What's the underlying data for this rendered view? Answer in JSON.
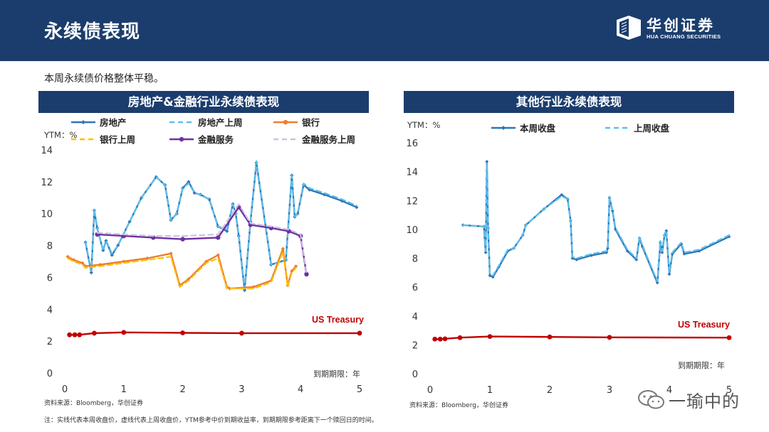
{
  "header": {
    "title": "永续债表现",
    "logo_cn": "华创证券",
    "logo_en": "HUA CHUANG SECURITIES"
  },
  "summary": "本周永续债价格整体平稳。",
  "source_left": "资料来源：Bloomberg，华创证券",
  "source_right": "资料来源：Bloomberg，华创证券",
  "note": "注：实线代表本周收盘价，虚线代表上周收盘价，YTM参考中价到期收益率，到期期限参考距离下一个赎回日的时间。",
  "watermark": "一瑜中的",
  "colors": {
    "header_bg": "#1b3d6d",
    "property": "#2e75b6",
    "property_prev": "#5bc0eb",
    "bank": "#ed7d31",
    "bank_prev": "#ffc000",
    "finserv": "#7030a0",
    "finserv_prev": "#c9c3e6",
    "treasury": "#c00000"
  },
  "chart_data": [
    {
      "type": "line",
      "title": "房地产&金融行业永续债表现",
      "ylabel": "YTM：%",
      "xlabel": "到期期限：年",
      "xlim": [
        0,
        5
      ],
      "ylim": [
        0,
        14
      ],
      "xticks": [
        "0",
        "1",
        "2",
        "3",
        "4",
        "5"
      ],
      "yticks": [
        "0",
        "2",
        "4",
        "6",
        "8",
        "10",
        "12",
        "14"
      ],
      "legend": "top",
      "grid": false,
      "annotation": "US Treasury",
      "series": [
        {
          "name": "房地产",
          "style": "solid",
          "x": [
            0.35,
            0.45,
            0.5,
            0.55,
            0.65,
            0.7,
            0.8,
            0.9,
            1.1,
            1.3,
            1.55,
            1.7,
            1.8,
            1.9,
            2.0,
            2.1,
            2.2,
            2.3,
            2.45,
            2.6,
            2.75,
            2.85,
            2.9,
            2.95,
            3.05,
            3.15,
            3.25,
            3.5,
            3.75,
            3.85,
            3.9,
            3.95,
            4.05,
            4.15,
            4.4,
            4.7,
            4.95
          ],
          "y": [
            8.2,
            6.3,
            10.2,
            9.1,
            7.7,
            8.3,
            7.4,
            8.0,
            9.5,
            11.0,
            12.3,
            11.8,
            9.6,
            10.0,
            11.6,
            12.0,
            11.3,
            11.2,
            10.9,
            9.2,
            8.9,
            10.6,
            10.0,
            8.6,
            5.2,
            9.5,
            13.2,
            6.8,
            7.1,
            12.4,
            9.8,
            10.0,
            11.8,
            11.5,
            11.2,
            10.8,
            10.4
          ]
        },
        {
          "name": "房地产上周",
          "style": "dashed",
          "x": [
            0.35,
            0.45,
            0.5,
            0.55,
            0.65,
            0.7,
            0.8,
            0.9,
            1.1,
            1.3,
            1.55,
            1.7,
            1.8,
            1.9,
            2.0,
            2.1,
            2.2,
            2.3,
            2.45,
            2.6,
            2.75,
            2.85,
            2.9,
            2.95,
            3.05,
            3.15,
            3.25,
            3.5,
            3.75,
            3.85,
            3.9,
            3.95,
            4.05,
            4.15,
            4.4,
            4.7,
            4.95
          ],
          "y": [
            8.2,
            6.4,
            10.3,
            9.1,
            7.7,
            8.3,
            7.5,
            8.0,
            9.5,
            11.0,
            12.3,
            11.8,
            9.6,
            10.0,
            11.6,
            11.9,
            11.3,
            11.2,
            10.9,
            9.2,
            9.0,
            10.6,
            10.1,
            8.6,
            5.3,
            9.5,
            13.3,
            6.8,
            7.1,
            12.4,
            9.8,
            10.0,
            11.9,
            11.6,
            11.3,
            10.9,
            10.5
          ]
        },
        {
          "name": "银行",
          "style": "solid",
          "x": [
            0.05,
            0.15,
            0.3,
            0.35,
            0.6,
            1.0,
            1.4,
            1.8,
            1.95,
            2.1,
            2.4,
            2.6,
            2.75,
            2.8,
            3.2,
            3.5,
            3.7,
            3.78,
            3.85,
            3.92
          ],
          "y": [
            7.3,
            7.1,
            6.9,
            6.7,
            6.8,
            7.0,
            7.2,
            7.5,
            5.5,
            5.9,
            7.0,
            7.4,
            5.4,
            5.3,
            5.4,
            5.8,
            7.8,
            5.5,
            6.4,
            6.7
          ]
        },
        {
          "name": "银行上周",
          "style": "dashed",
          "x": [
            0.05,
            0.15,
            0.3,
            0.35,
            0.6,
            1.0,
            1.4,
            1.8,
            1.95,
            2.1,
            2.4,
            2.6,
            2.75,
            2.8,
            3.2,
            3.5,
            3.7,
            3.78,
            3.85,
            3.92
          ],
          "y": [
            7.2,
            7.0,
            6.8,
            6.6,
            6.7,
            6.9,
            7.1,
            7.3,
            5.4,
            5.8,
            6.9,
            7.2,
            5.3,
            5.3,
            5.3,
            5.7,
            7.6,
            5.4,
            6.3,
            6.6
          ]
        },
        {
          "name": "金融服务",
          "style": "solid",
          "x": [
            0.55,
            1.0,
            1.5,
            2.0,
            2.6,
            2.95,
            3.15,
            3.5,
            3.8,
            4.0,
            4.1
          ],
          "y": [
            8.7,
            8.6,
            8.5,
            8.4,
            8.5,
            10.4,
            9.3,
            9.1,
            8.9,
            8.6,
            6.2
          ]
        },
        {
          "name": "金融服务上周",
          "style": "dashed",
          "x": [
            0.55,
            1.0,
            1.5,
            2.0,
            2.6,
            2.95,
            3.15,
            3.5,
            3.8,
            4.0,
            4.1
          ],
          "y": [
            8.8,
            8.7,
            8.6,
            8.6,
            8.7,
            10.6,
            9.4,
            9.2,
            9.0,
            8.7,
            6.3
          ]
        },
        {
          "name": "US Treasury",
          "style": "solid",
          "x": [
            0.08,
            0.17,
            0.25,
            0.5,
            1.0,
            2.0,
            3.0,
            5.0
          ],
          "y": [
            2.4,
            2.4,
            2.4,
            2.5,
            2.55,
            2.52,
            2.5,
            2.5
          ]
        }
      ]
    },
    {
      "type": "line",
      "title": "其他行业永续债表现",
      "ylabel": "YTM：%",
      "xlabel": "到期期限：年",
      "xlim": [
        0,
        5
      ],
      "ylim": [
        0,
        16
      ],
      "xticks": [
        "0",
        "1",
        "2",
        "3",
        "4",
        "5"
      ],
      "yticks": [
        "0",
        "2",
        "4",
        "6",
        "8",
        "10",
        "12",
        "14",
        "16"
      ],
      "legend": "top",
      "grid": false,
      "annotation": "US Treasury",
      "series": [
        {
          "name": "本周收盘",
          "style": "solid",
          "x": [
            0.55,
            0.9,
            0.93,
            0.95,
            0.97,
            1.0,
            1.05,
            1.15,
            1.3,
            1.4,
            1.55,
            1.6,
            1.9,
            2.2,
            2.3,
            2.35,
            2.38,
            2.45,
            2.7,
            2.95,
            2.97,
            3.0,
            3.05,
            3.1,
            3.3,
            3.45,
            3.5,
            3.55,
            3.8,
            3.85,
            3.88,
            3.92,
            3.95,
            4.0,
            4.05,
            4.2,
            4.25,
            4.5,
            5.0
          ],
          "y": [
            10.3,
            10.2,
            8.4,
            14.7,
            10.1,
            6.8,
            6.7,
            7.4,
            8.5,
            8.7,
            9.6,
            10.3,
            11.4,
            12.4,
            12.1,
            10.6,
            8.0,
            7.9,
            8.2,
            8.4,
            8.7,
            12.2,
            11.3,
            10.0,
            8.5,
            7.9,
            9.4,
            8.8,
            6.3,
            9.1,
            8.4,
            9.6,
            9.9,
            6.9,
            8.3,
            9.0,
            8.3,
            8.5,
            9.5
          ]
        },
        {
          "name": "上周收盘",
          "style": "dashed",
          "x": [
            0.55,
            0.9,
            0.93,
            0.95,
            0.97,
            1.0,
            1.05,
            1.15,
            1.3,
            1.4,
            1.55,
            1.6,
            1.9,
            2.2,
            2.3,
            2.35,
            2.38,
            2.45,
            2.7,
            2.95,
            2.97,
            3.0,
            3.05,
            3.1,
            3.3,
            3.45,
            3.5,
            3.55,
            3.8,
            3.85,
            3.88,
            3.92,
            3.95,
            4.0,
            4.05,
            4.2,
            4.25,
            4.5,
            5.0
          ],
          "y": [
            10.3,
            10.2,
            8.5,
            14.6,
            10.1,
            6.9,
            6.8,
            7.5,
            8.6,
            8.7,
            9.6,
            10.3,
            11.4,
            12.3,
            12.1,
            10.6,
            8.1,
            8.0,
            8.3,
            8.5,
            8.8,
            12.3,
            11.3,
            10.1,
            8.6,
            8.0,
            9.5,
            8.9,
            6.4,
            9.2,
            8.5,
            9.7,
            9.9,
            7.0,
            8.4,
            9.1,
            8.4,
            8.6,
            9.6
          ]
        },
        {
          "name": "US Treasury",
          "style": "solid",
          "x": [
            0.08,
            0.17,
            0.25,
            0.5,
            1.0,
            2.0,
            3.0,
            5.0
          ],
          "y": [
            2.4,
            2.4,
            2.42,
            2.5,
            2.58,
            2.55,
            2.52,
            2.5
          ]
        }
      ]
    }
  ]
}
